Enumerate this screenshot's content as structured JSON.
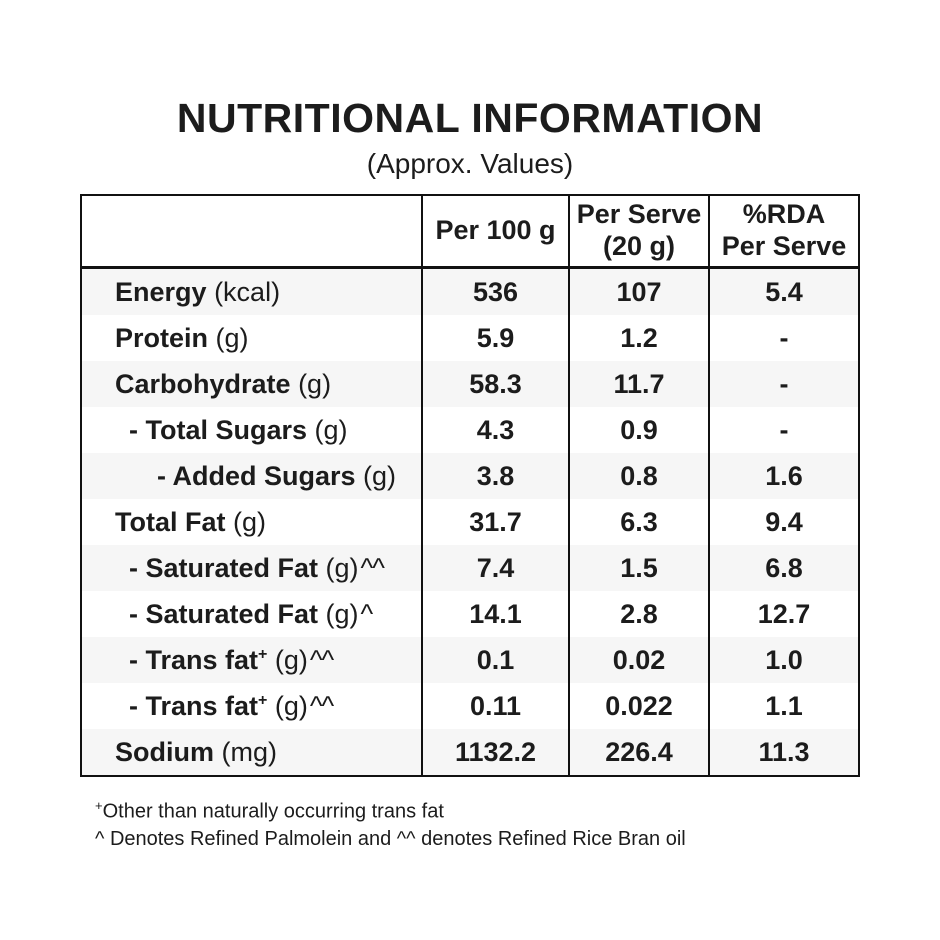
{
  "title": "NUTRITIONAL INFORMATION",
  "subtitle": "(Approx. Values)",
  "table": {
    "headers": {
      "label_col": "",
      "per_100g": "Per 100 g",
      "per_serve_line1": "Per Serve",
      "per_serve_line2": "(20 g)",
      "rda_line1": "%RDA",
      "rda_line2": "Per Serve"
    },
    "rows": [
      {
        "name": "Energy",
        "name_sup": "",
        "unit": "(kcal)",
        "unit_sup": "",
        "indent": 0,
        "shaded": true,
        "per_100g": "536",
        "per_serve": "107",
        "rda_per_serve": "5.4"
      },
      {
        "name": "Protein",
        "name_sup": "",
        "unit": "(g)",
        "unit_sup": "",
        "indent": 0,
        "shaded": false,
        "per_100g": "5.9",
        "per_serve": "1.2",
        "rda_per_serve": "-"
      },
      {
        "name": "Carbohydrate",
        "name_sup": "",
        "unit": "(g)",
        "unit_sup": "",
        "indent": 0,
        "shaded": true,
        "per_100g": "58.3",
        "per_serve": "11.7",
        "rda_per_serve": "-"
      },
      {
        "name": "- Total Sugars",
        "name_sup": "",
        "unit": "(g)",
        "unit_sup": "",
        "indent": 1,
        "shaded": false,
        "per_100g": "4.3",
        "per_serve": "0.9",
        "rda_per_serve": "-"
      },
      {
        "name": "- Added Sugars",
        "name_sup": "",
        "unit": "(g)",
        "unit_sup": "",
        "indent": 2,
        "shaded": true,
        "per_100g": "3.8",
        "per_serve": "0.8",
        "rda_per_serve": "1.6"
      },
      {
        "name": "Total Fat",
        "name_sup": "",
        "unit": "(g)",
        "unit_sup": "",
        "indent": 0,
        "shaded": false,
        "per_100g": "31.7",
        "per_serve": "6.3",
        "rda_per_serve": "9.4"
      },
      {
        "name": "- Saturated Fat",
        "name_sup": "",
        "unit": "(g)",
        "unit_sup": "^^",
        "indent": 1,
        "shaded": true,
        "per_100g": "7.4",
        "per_serve": "1.5",
        "rda_per_serve": "6.8"
      },
      {
        "name": "- Saturated Fat",
        "name_sup": "",
        "unit": "(g)",
        "unit_sup": "^",
        "indent": 1,
        "shaded": false,
        "per_100g": "14.1",
        "per_serve": "2.8",
        "rda_per_serve": "12.7"
      },
      {
        "name": "- Trans fat",
        "name_sup": "+",
        "unit": "(g)",
        "unit_sup": "^^",
        "indent": 1,
        "shaded": true,
        "per_100g": "0.1",
        "per_serve": "0.02",
        "rda_per_serve": "1.0"
      },
      {
        "name": "- Trans fat",
        "name_sup": "+",
        "unit": "(g)",
        "unit_sup": "^^",
        "indent": 1,
        "shaded": false,
        "per_100g": "0.11",
        "per_serve": "0.022",
        "rda_per_serve": "1.1"
      },
      {
        "name": "Sodium",
        "name_sup": "",
        "unit": "(mg)",
        "unit_sup": "",
        "indent": 0,
        "shaded": true,
        "per_100g": "1132.2",
        "per_serve": "226.4",
        "rda_per_serve": "11.3"
      }
    ]
  },
  "footnotes": [
    {
      "sup": "+",
      "text": "Other than naturally occurring trans fat"
    },
    {
      "sup": "",
      "text": "^ Denotes Refined Palmolein and ^^ denotes Refined Rice Bran oil"
    }
  ]
}
